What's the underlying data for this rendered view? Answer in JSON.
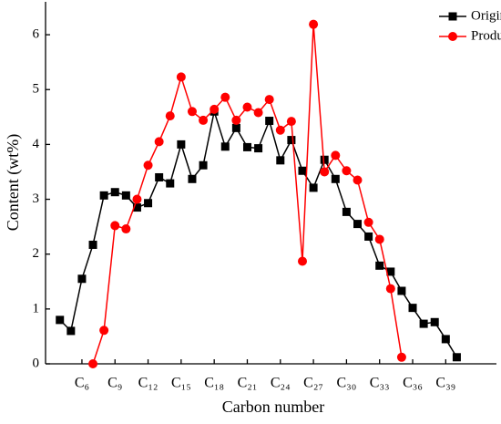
{
  "chart_data": {
    "type": "line",
    "xlabel": "Carbon number",
    "ylabel": "Content (wt%)",
    "x": [
      4,
      5,
      6,
      7,
      8,
      9,
      10,
      11,
      12,
      13,
      14,
      15,
      16,
      17,
      18,
      19,
      20,
      21,
      22,
      23,
      24,
      25,
      26,
      27,
      28,
      29,
      30,
      31,
      32,
      33,
      34,
      35,
      36,
      37,
      38,
      39,
      40
    ],
    "series": [
      {
        "name": "Original oil",
        "color": "#000000",
        "marker": "square",
        "values": [
          0.8,
          0.6,
          1.55,
          2.17,
          3.07,
          3.13,
          3.07,
          2.85,
          2.93,
          3.4,
          3.29,
          4.0,
          3.37,
          3.62,
          4.6,
          3.96,
          4.3,
          3.95,
          3.93,
          4.43,
          3.71,
          4.08,
          3.52,
          3.21,
          3.72,
          3.37,
          2.77,
          2.55,
          2.32,
          1.79,
          1.68,
          1.33,
          1.02,
          0.73,
          0.76,
          0.45,
          0.12
        ]
      },
      {
        "name": "Produced oil",
        "color": "#ff0000",
        "marker": "circle",
        "values": [
          null,
          null,
          null,
          0.0,
          0.61,
          2.52,
          2.46,
          3.0,
          3.62,
          4.05,
          4.52,
          5.23,
          4.6,
          4.44,
          4.64,
          4.86,
          4.44,
          4.68,
          4.58,
          4.82,
          4.26,
          4.42,
          1.87,
          6.19,
          3.5,
          3.8,
          3.52,
          3.35,
          2.58,
          2.27,
          1.37,
          0.12,
          null,
          null,
          null,
          null,
          null
        ]
      }
    ],
    "xlim": [
      2.7,
      43.6
    ],
    "xticks": [
      {
        "value": 6,
        "label": "C₆"
      },
      {
        "value": 9,
        "label": "C₉"
      },
      {
        "value": 12,
        "label": "C₁₂"
      },
      {
        "value": 15,
        "label": "C₁₅"
      },
      {
        "value": 18,
        "label": "C₁₈"
      },
      {
        "value": 21,
        "label": "C₂₁"
      },
      {
        "value": 24,
        "label": "C₂₄"
      },
      {
        "value": 27,
        "label": "C₂₇"
      },
      {
        "value": 30,
        "label": "C₃₀"
      },
      {
        "value": 33,
        "label": "C₃₃"
      },
      {
        "value": 36,
        "label": "C₃₆"
      },
      {
        "value": 39,
        "label": "C₃₉"
      }
    ],
    "ylim": [
      0,
      6.6
    ],
    "yticks": [
      0,
      1,
      2,
      3,
      4,
      5,
      6
    ],
    "grid": false,
    "legend": "top-right"
  }
}
